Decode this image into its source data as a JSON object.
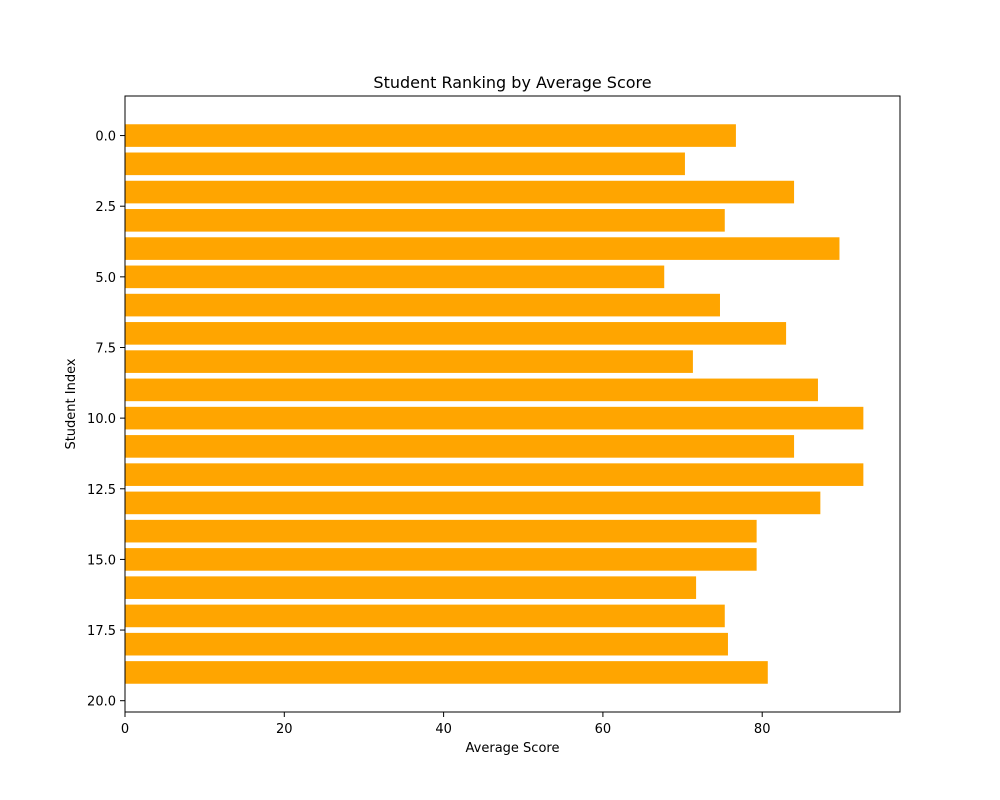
{
  "chart_data": {
    "type": "bar",
    "orientation": "horizontal",
    "title": "Student Ranking by Average Score",
    "xlabel": "Average Score",
    "ylabel": "Student Index",
    "categories": [
      0,
      1,
      2,
      3,
      4,
      5,
      6,
      7,
      8,
      9,
      10,
      11,
      12,
      13,
      14,
      15,
      16,
      17,
      18,
      19
    ],
    "values": [
      76.7,
      70.3,
      84.0,
      75.3,
      89.7,
      67.7,
      74.7,
      83.0,
      71.3,
      87.0,
      92.7,
      84.0,
      92.7,
      87.3,
      79.3,
      79.3,
      71.7,
      75.3,
      75.7,
      80.7
    ],
    "xlim": [
      0,
      97.3
    ],
    "ylim": [
      20.4,
      -1.4
    ],
    "y_inverted": true,
    "xticks": [
      0,
      20,
      40,
      60,
      80
    ],
    "xtick_labels": [
      "0",
      "20",
      "40",
      "60",
      "80"
    ],
    "yticks": [
      0,
      2.5,
      5,
      7.5,
      10,
      12.5,
      15,
      17.5,
      20
    ],
    "ytick_labels": [
      "0.0",
      "2.5",
      "5.0",
      "7.5",
      "10.0",
      "12.5",
      "15.0",
      "17.5",
      "20.0"
    ],
    "bar_color": "#ffa500",
    "grid": false,
    "legend": "none"
  }
}
